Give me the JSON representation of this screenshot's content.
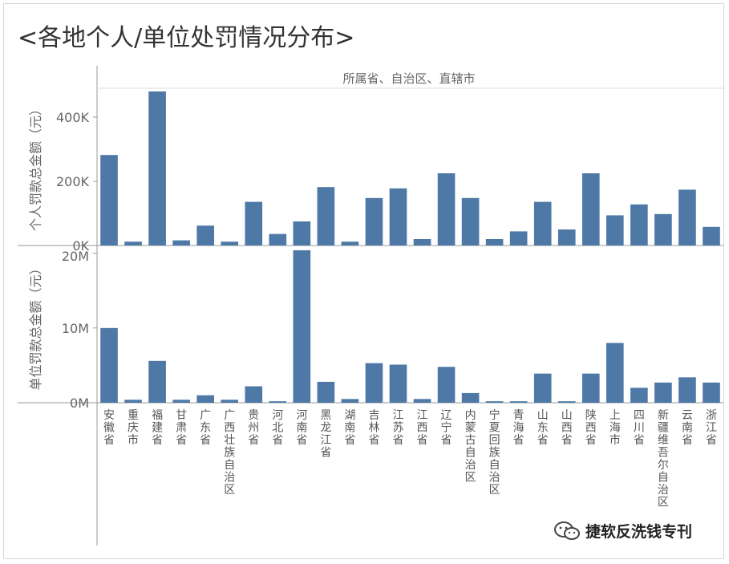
{
  "title": "<各地个人/单位处罚情况分布>",
  "watermark": {
    "text": "捷软反洗钱专刊",
    "icon": "wechat-icon"
  },
  "colors": {
    "bar": "#4e79a7",
    "axis": "#999999",
    "grid": "#e6e6e6",
    "text": "#666666"
  },
  "chart_data": {
    "type": "bar",
    "column_header": "所属省、自治区、直辖市",
    "categories": [
      "安徽省",
      "重庆市",
      "福建省",
      "甘肃省",
      "广东省",
      "广西壮族自治区",
      "贵州省",
      "河北省",
      "河南省",
      "黑龙江省",
      "湖南省",
      "吉林省",
      "江苏省",
      "江西省",
      "辽宁省",
      "内蒙古自治区",
      "宁夏回族自治区",
      "青海省",
      "山东省",
      "山西省",
      "陕西省",
      "上海市",
      "四川省",
      "新疆维吾尔自治区",
      "云南省",
      "浙江省"
    ],
    "panels": [
      {
        "ylabel": "个人罚款总金额（元）",
        "ylim": [
          0,
          490000
        ],
        "ticks": [
          {
            "value": 0,
            "label": "0K"
          },
          {
            "value": 200000,
            "label": "200K"
          },
          {
            "value": 400000,
            "label": "400K"
          }
        ],
        "values": [
          282000,
          12000,
          480000,
          16000,
          62000,
          12000,
          136000,
          36000,
          75000,
          182000,
          12000,
          148000,
          178000,
          20000,
          225000,
          148000,
          20000,
          44000,
          136000,
          50000,
          225000,
          94000,
          128000,
          98000,
          174000,
          58000
        ]
      },
      {
        "ylabel": "单位罚款总金额（元）",
        "ylim": [
          0,
          20500000
        ],
        "ticks": [
          {
            "value": 0,
            "label": "0M"
          },
          {
            "value": 10000000,
            "label": "10M"
          },
          {
            "value": 20000000,
            "label": "20M"
          }
        ],
        "values": [
          10000000,
          400000,
          5600000,
          400000,
          1000000,
          400000,
          2200000,
          200000,
          20400000,
          2800000,
          500000,
          5300000,
          5100000,
          500000,
          4800000,
          1300000,
          200000,
          200000,
          3900000,
          200000,
          3900000,
          8000000,
          2000000,
          2700000,
          3400000,
          2700000
        ]
      }
    ]
  }
}
